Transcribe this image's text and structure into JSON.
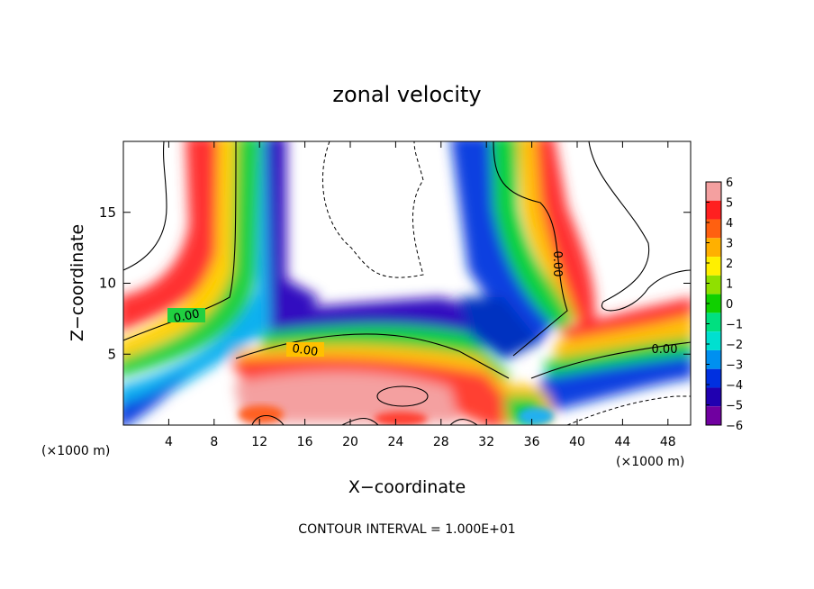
{
  "chart_data": {
    "type": "heatmap",
    "title": "zonal velocity",
    "xlabel": "X−coordinate",
    "ylabel": "Z−coordinate",
    "x_unit_left": "(×1000 m)",
    "x_unit_right": "(×1000 m)",
    "xlim": [
      0,
      50
    ],
    "ylim": [
      0,
      20
    ],
    "x_ticks": [
      4,
      8,
      12,
      16,
      20,
      24,
      28,
      32,
      36,
      40,
      44,
      48
    ],
    "y_ticks": [
      5,
      10,
      15
    ],
    "colorbar": {
      "ticks": [
        "6",
        "5",
        "4",
        "3",
        "2",
        "1",
        "0",
        "−1",
        "−2",
        "−3",
        "−4",
        "−5",
        "−6"
      ],
      "colors": [
        "#f4a0a0",
        "#ff2020",
        "#ff6010",
        "#ffb000",
        "#fff000",
        "#90e000",
        "#10d000",
        "#00e080",
        "#00e0d0",
        "#0090f0",
        "#0030e0",
        "#2000b0",
        "#7000a0"
      ]
    },
    "contour_labels": [
      "0.00",
      "0.00",
      "0.00",
      "0.00"
    ],
    "footer": "CONTOUR INTERVAL = 1.000E+01"
  }
}
